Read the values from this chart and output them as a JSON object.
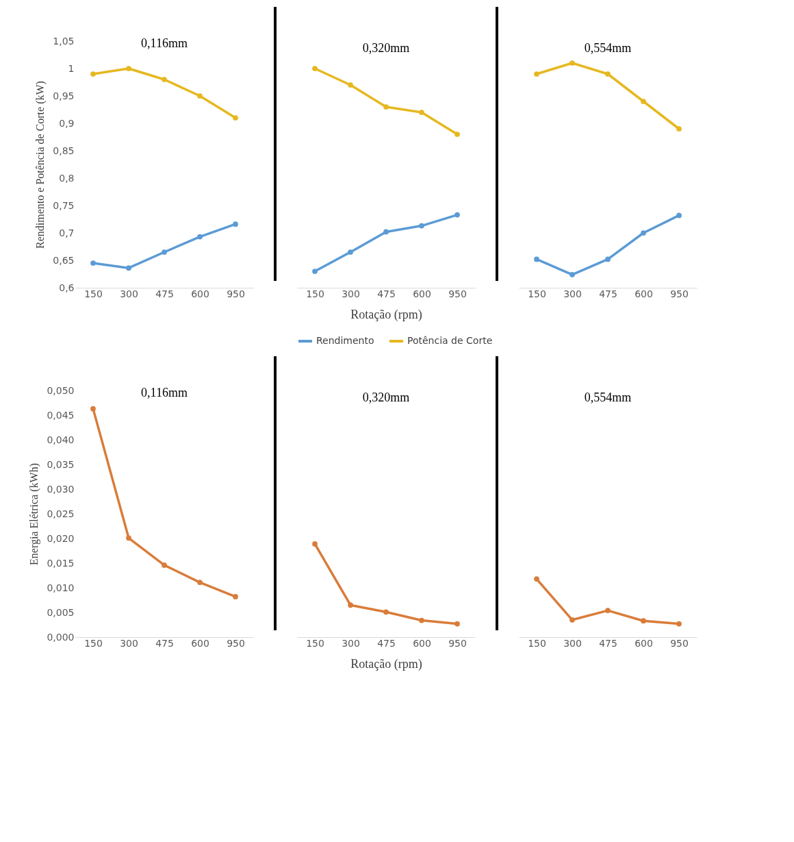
{
  "chart_data": [
    {
      "type": "line",
      "title": "0,116mm",
      "ylabel": "Rendimento e Potência de Corte (kW)",
      "categories": [
        "150",
        "300",
        "475",
        "600",
        "950"
      ],
      "ylim": [
        0.6,
        1.05
      ],
      "yticks": [
        {
          "value": 0.6,
          "label": "0,6"
        },
        {
          "value": 0.65,
          "label": "0,65"
        },
        {
          "value": 0.7,
          "label": "0,7"
        },
        {
          "value": 0.75,
          "label": "0,75"
        },
        {
          "value": 0.8,
          "label": "0,8"
        },
        {
          "value": 0.85,
          "label": "0,85"
        },
        {
          "value": 0.9,
          "label": "0,9"
        },
        {
          "value": 0.95,
          "label": "0,95"
        },
        {
          "value": 1,
          "label": "1"
        },
        {
          "value": 1.05,
          "label": "1,05"
        }
      ],
      "marker": "circle",
      "grid": false,
      "legend": false,
      "series": [
        {
          "color": "#5b9bd5",
          "values": [
            0.645,
            0.636,
            0.665,
            0.693,
            0.716
          ]
        },
        {
          "color": "#e6b820",
          "values": [
            0.99,
            1.0,
            0.98,
            0.95,
            0.91
          ]
        }
      ]
    },
    {
      "type": "line",
      "title": "0,320mm",
      "xlabel": "Rotação (rpm)",
      "categories": [
        "150",
        "300",
        "475",
        "600",
        "950"
      ],
      "ylim": [
        0.6,
        1.05
      ],
      "tick_labels": "x",
      "marker": "circle",
      "grid": false,
      "legend": "bottom",
      "series": [
        {
          "name": "Rendimento",
          "color": "#5b9bd5",
          "values": [
            0.63,
            0.665,
            0.702,
            0.713,
            0.733
          ]
        },
        {
          "name": "Potência de Corte",
          "color": "#e6b820",
          "values": [
            1.0,
            0.97,
            0.93,
            0.92,
            0.88
          ]
        }
      ]
    },
    {
      "type": "line",
      "title": "0,554mm",
      "categories": [
        "150",
        "300",
        "475",
        "600",
        "950"
      ],
      "ylim": [
        0.6,
        1.05
      ],
      "tick_labels": "x",
      "marker": "circle",
      "grid": false,
      "legend": false,
      "series": [
        {
          "color": "#5b9bd5",
          "values": [
            0.652,
            0.624,
            0.652,
            0.7,
            0.732
          ]
        },
        {
          "color": "#e6b820",
          "values": [
            0.99,
            1.01,
            0.99,
            0.94,
            0.89
          ]
        }
      ]
    },
    {
      "type": "line",
      "title": "0,116mm",
      "ylabel": "Energia Elétrica (kWh)",
      "categories": [
        "150",
        "300",
        "475",
        "600",
        "950"
      ],
      "ylim": [
        0,
        0.05
      ],
      "yticks": [
        {
          "value": 0,
          "label": "0,000"
        },
        {
          "value": 0.005,
          "label": "0,005"
        },
        {
          "value": 0.01,
          "label": "0,010"
        },
        {
          "value": 0.015,
          "label": "0,015"
        },
        {
          "value": 0.02,
          "label": "0,020"
        },
        {
          "value": 0.025,
          "label": "0,025"
        },
        {
          "value": 0.03,
          "label": "0,030"
        },
        {
          "value": 0.035,
          "label": "0,035"
        },
        {
          "value": 0.04,
          "label": "0,040"
        },
        {
          "value": 0.045,
          "label": "0,045"
        },
        {
          "value": 0.05,
          "label": "0,050"
        }
      ],
      "marker": "circle",
      "grid": false,
      "legend": false,
      "series": [
        {
          "color": "#d97c3a",
          "values": [
            0.0463,
            0.0201,
            0.0146,
            0.0111,
            0.0082
          ]
        }
      ]
    },
    {
      "type": "line",
      "title": "0,320mm",
      "xlabel": "Rotação (rpm)",
      "categories": [
        "150",
        "300",
        "475",
        "600",
        "950"
      ],
      "ylim": [
        0,
        0.05
      ],
      "tick_labels": "x",
      "marker": "circle",
      "grid": false,
      "legend": false,
      "series": [
        {
          "color": "#d97c3a",
          "values": [
            0.0189,
            0.0065,
            0.0051,
            0.0034,
            0.0027
          ]
        }
      ]
    },
    {
      "type": "line",
      "title": "0,554mm",
      "categories": [
        "150",
        "300",
        "475",
        "600",
        "950"
      ],
      "ylim": [
        0,
        0.05
      ],
      "tick_labels": "x",
      "marker": "circle",
      "grid": false,
      "legend": false,
      "series": [
        {
          "color": "#d97c3a",
          "values": [
            0.0118,
            0.0035,
            0.0054,
            0.0033,
            0.0027
          ]
        }
      ]
    }
  ]
}
